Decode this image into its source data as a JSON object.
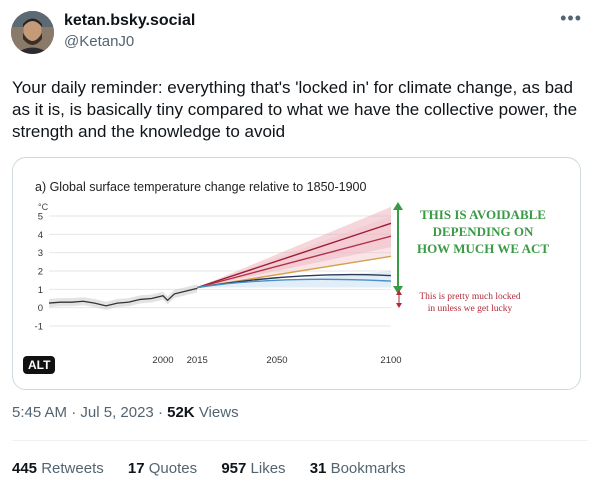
{
  "user": {
    "display_name": "ketan.bsky.social",
    "handle": "@KetanJ0",
    "more_icon": "more-horizontal-icon"
  },
  "tweet": {
    "text": "Your daily reminder: everything that's 'locked in' for climate change, as bad as it is, is basically tiny compared to what we have the collective power, the strength and the knowledge to avoid",
    "alt_badge": "ALT",
    "time": "5:45 AM",
    "date": "Jul 5, 2023",
    "separator": "·",
    "views_count": "52K",
    "views_label": "Views"
  },
  "stats": {
    "retweets_count": "445",
    "retweets_label": "Retweets",
    "quotes_count": "17",
    "quotes_label": "Quotes",
    "likes_count": "957",
    "likes_label": "Likes",
    "bookmarks_count": "31",
    "bookmarks_label": "Bookmarks"
  },
  "chart_data": {
    "type": "line",
    "title": "a) Global surface temperature change relative to 1850-1900",
    "ylabel": "°C",
    "xlabel": "",
    "xlim": [
      1950,
      2100
    ],
    "ylim": [
      -1,
      5
    ],
    "x_ticks": [
      {
        "value": 2000,
        "label": "2000"
      },
      {
        "value": 2015,
        "label": "2015"
      },
      {
        "value": 2050,
        "label": "2050"
      },
      {
        "value": 2100,
        "label": "2100"
      }
    ],
    "y_ticks": [
      -1,
      0,
      1,
      2,
      3,
      4,
      5
    ],
    "grid": "horizontal",
    "historical": {
      "color": "#333333",
      "points": [
        [
          1950,
          0.25
        ],
        [
          1955,
          0.3
        ],
        [
          1960,
          0.3
        ],
        [
          1965,
          0.35
        ],
        [
          1970,
          0.25
        ],
        [
          1975,
          0.1
        ],
        [
          1980,
          0.25
        ],
        [
          1985,
          0.3
        ],
        [
          1990,
          0.45
        ],
        [
          1995,
          0.5
        ],
        [
          2000,
          0.65
        ],
        [
          2002,
          0.4
        ],
        [
          2005,
          0.75
        ],
        [
          2010,
          0.9
        ],
        [
          2015,
          1.05
        ]
      ]
    },
    "series": [
      {
        "color": "#9b1b30",
        "start": [
          2015,
          1.1
        ],
        "end": [
          2100,
          4.6
        ],
        "band": [
          3.3,
          5.5
        ]
      },
      {
        "color": "#b0304a",
        "start": [
          2015,
          1.1
        ],
        "end": [
          2100,
          3.9
        ],
        "band": [
          2.8,
          5.0
        ]
      },
      {
        "color": "#d4a04a",
        "start": [
          2015,
          1.1
        ],
        "end": [
          2100,
          2.8
        ]
      },
      {
        "color": "#2b3a55",
        "start": [
          2015,
          1.1
        ],
        "end": [
          2100,
          1.75
        ],
        "peak": [
          2060,
          1.85
        ]
      },
      {
        "color": "#4a90c8",
        "start": [
          2015,
          1.1
        ],
        "end": [
          2100,
          1.45
        ],
        "peak": [
          2050,
          1.6
        ],
        "band": [
          1.1,
          2.0
        ]
      }
    ],
    "annotations": {
      "avoidable_line1": "THIS IS AVOIDABLE",
      "avoidable_line2": "DEPENDING ON",
      "avoidable_line3": "HOW MUCH WE ACT",
      "avoidable_color": "#3a9a45",
      "locked_line1": "This is pretty much locked",
      "locked_line2": "in unless we get lucky",
      "locked_color": "#b22a3a"
    }
  }
}
